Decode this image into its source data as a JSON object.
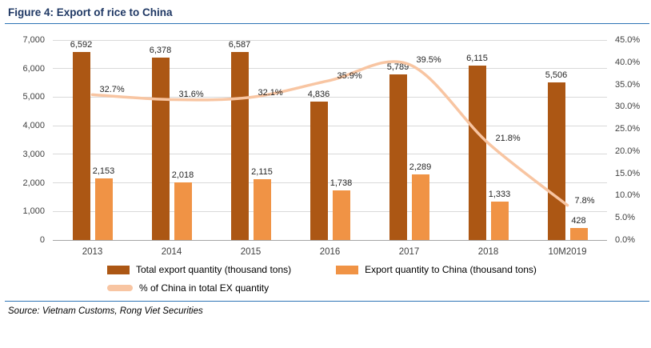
{
  "title": "Figure 4: Export of rice to China",
  "source": "Source: Vietnam Customs, Rong Viet Securities",
  "colors": {
    "title": "#1F3864",
    "rule": "#2E74B5",
    "bar_total": "#AC5714",
    "bar_china": "#F09345",
    "line": "#F8C5A2",
    "grid": "#D9D9D9",
    "axis_text": "#404040"
  },
  "chart_data": {
    "type": "bar",
    "subtype": "bar+line combo, dual axis",
    "title": "Figure 4: Export of rice to China",
    "categories": [
      "2013",
      "2014",
      "2015",
      "2016",
      "2017",
      "2018",
      "10M2019"
    ],
    "series": [
      {
        "name": "Total export quantity (thousand tons)",
        "type": "bar",
        "axis": "left",
        "values": [
          6592,
          6378,
          6587,
          4836,
          5789,
          6115,
          5506
        ]
      },
      {
        "name": "Export quantity to China (thousand tons)",
        "type": "bar",
        "axis": "left",
        "values": [
          2153,
          2018,
          2115,
          1738,
          2289,
          1333,
          428
        ]
      },
      {
        "name": "% of China in total EX quantity",
        "type": "line",
        "axis": "right",
        "values": [
          32.7,
          31.6,
          32.1,
          35.9,
          39.5,
          21.8,
          7.8
        ]
      }
    ],
    "bar_labels": [
      [
        "6,592",
        "6,378",
        "6,587",
        "4,836",
        "5,789",
        "6,115",
        "5,506"
      ],
      [
        "2,153",
        "2,018",
        "2,115",
        "1,738",
        "2,289",
        "1,333",
        "428"
      ]
    ],
    "line_labels": [
      "32.7%",
      "31.6%",
      "32.1%",
      "35.9%",
      "39.5%",
      "21.8%",
      "7.8%"
    ],
    "left_axis": {
      "min": 0,
      "max": 7000,
      "step": 1000,
      "tick_labels": [
        "0",
        "1,000",
        "2,000",
        "3,000",
        "4,000",
        "5,000",
        "6,000",
        "7,000"
      ]
    },
    "right_axis": {
      "min": 0,
      "max": 45,
      "step": 5,
      "tick_labels": [
        "0.0%",
        "5.0%",
        "10.0%",
        "15.0%",
        "20.0%",
        "25.0%",
        "30.0%",
        "35.0%",
        "40.0%",
        "45.0%"
      ]
    },
    "grid": "horizontal",
    "legend_position": "bottom-left"
  }
}
